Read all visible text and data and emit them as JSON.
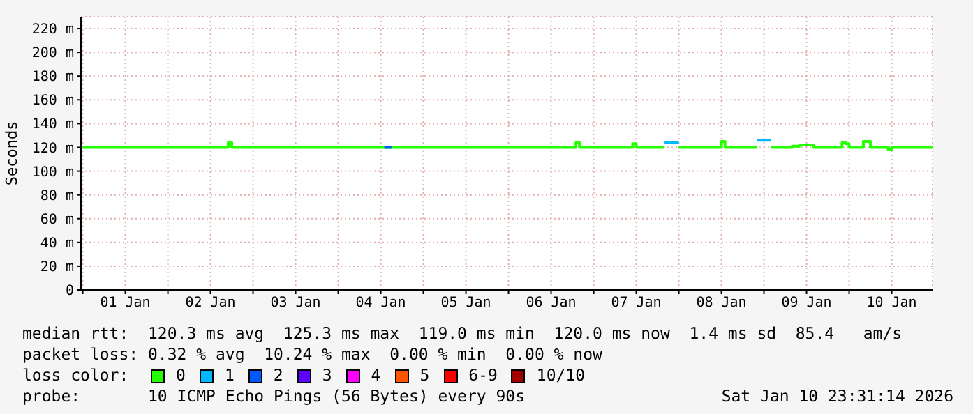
{
  "chart_data": {
    "type": "step",
    "ylabel": "Seconds",
    "xlim": [
      "2025-12-31T23:30",
      "2026-01-10T23:30"
    ],
    "xticks": [
      {
        "value": "2026-01-01T00:00",
        "label": null
      },
      {
        "value": "2026-01-01T12:00",
        "label": "01 Jan"
      },
      {
        "value": "2026-01-02T00:00",
        "label": null
      },
      {
        "value": "2026-01-02T12:00",
        "label": "02 Jan"
      },
      {
        "value": "2026-01-03T00:00",
        "label": null
      },
      {
        "value": "2026-01-03T12:00",
        "label": "03 Jan"
      },
      {
        "value": "2026-01-04T00:00",
        "label": null
      },
      {
        "value": "2026-01-04T12:00",
        "label": "04 Jan"
      },
      {
        "value": "2026-01-05T00:00",
        "label": null
      },
      {
        "value": "2026-01-05T12:00",
        "label": "05 Jan"
      },
      {
        "value": "2026-01-06T00:00",
        "label": null
      },
      {
        "value": "2026-01-06T12:00",
        "label": "06 Jan"
      },
      {
        "value": "2026-01-07T00:00",
        "label": null
      },
      {
        "value": "2026-01-07T12:00",
        "label": "07 Jan"
      },
      {
        "value": "2026-01-08T00:00",
        "label": null
      },
      {
        "value": "2026-01-08T12:00",
        "label": "08 Jan"
      },
      {
        "value": "2026-01-09T00:00",
        "label": null
      },
      {
        "value": "2026-01-09T12:00",
        "label": "09 Jan"
      },
      {
        "value": "2026-01-10T00:00",
        "label": null
      },
      {
        "value": "2026-01-10T12:00",
        "label": "10 Jan"
      }
    ],
    "ylim": [
      0,
      230
    ],
    "yticks": [
      0,
      {
        "value": 20,
        "label": "20 m"
      },
      {
        "value": 40,
        "label": "40 m"
      },
      {
        "value": 60,
        "label": "60 m"
      },
      {
        "value": 80,
        "label": "80 m"
      },
      {
        "value": 100,
        "label": "100 m"
      },
      {
        "value": 120,
        "label": "120 m"
      },
      {
        "value": 140,
        "label": "140 m"
      },
      {
        "value": 160,
        "label": "160 m"
      },
      {
        "value": 180,
        "label": "180 m"
      },
      {
        "value": 200,
        "label": "200 m"
      },
      {
        "value": 220,
        "label": "220 m"
      }
    ],
    "grid": true,
    "legend": "bottom",
    "legend_title": "loss color:",
    "series": [
      {
        "name": "0",
        "color": "#26ff00",
        "x": [
          "2025-12-31T23:30",
          "2026-01-02T16:00",
          "2026-01-02T17:00",
          "2026-01-02T18:00",
          "2026-01-06T18:00",
          "2026-01-06T19:00",
          "2026-01-06T20:00",
          "2026-01-07T10:00",
          "2026-01-07T11:00",
          "2026-01-07T12:00",
          "2026-01-07T20:00",
          "2026-01-07T20:30",
          "2026-01-08T00:00",
          "2026-01-08T12:00",
          "2026-01-08T13:00",
          "2026-01-08T22:00",
          "2026-01-08T22:30",
          "2026-01-09T02:00",
          "2026-01-09T08:00",
          "2026-01-09T10:00",
          "2026-01-09T14:00",
          "2026-01-09T22:00",
          "2026-01-09T23:00",
          "2026-01-10T00:00",
          "2026-01-10T04:00",
          "2026-01-10T06:00",
          "2026-01-10T11:00",
          "2026-01-10T12:00",
          "2026-01-10T23:30"
        ],
        "values": [
          120,
          120,
          124,
          120,
          120,
          124,
          120,
          120,
          123,
          120,
          120,
          null,
          120,
          125,
          120,
          120,
          null,
          120,
          121,
          122,
          120,
          124,
          123,
          120,
          125,
          120,
          118,
          120,
          120
        ]
      },
      {
        "name": "1",
        "color": "#00b8ff",
        "x": [
          "2026-01-07T20:00",
          "2026-01-08T00:00",
          "2026-01-08T01:00",
          "2026-01-08T22:00",
          "2026-01-09T02:00"
        ],
        "values": [
          124,
          124,
          null,
          126,
          126
        ]
      },
      {
        "name": "2",
        "color": "#0059ff",
        "x": [
          "2026-01-04T13:00",
          "2026-01-04T15:00"
        ],
        "values": [
          120,
          120
        ]
      },
      {
        "name": "3",
        "color": "#5e00ff"
      },
      {
        "name": "4",
        "color": "#ff00ff"
      },
      {
        "name": "5",
        "color": "#ff5500"
      },
      {
        "name": "6-9",
        "color": "#ff0000"
      },
      {
        "name": "10/10",
        "color": "#a10000"
      }
    ],
    "annotations": [
      "median rtt:  120.3 ms avg  125.3 ms max  119.0 ms min  120.0 ms now  1.4 ms sd  85.4   am/s",
      "packet loss: 0.32 % avg  10.24 % max  0.00 % min  0.00 % now",
      "probe:       10 ICMP Echo Pings (56 Bytes) every 90s",
      "Sat Jan 10 23:31:14 2026"
    ]
  }
}
